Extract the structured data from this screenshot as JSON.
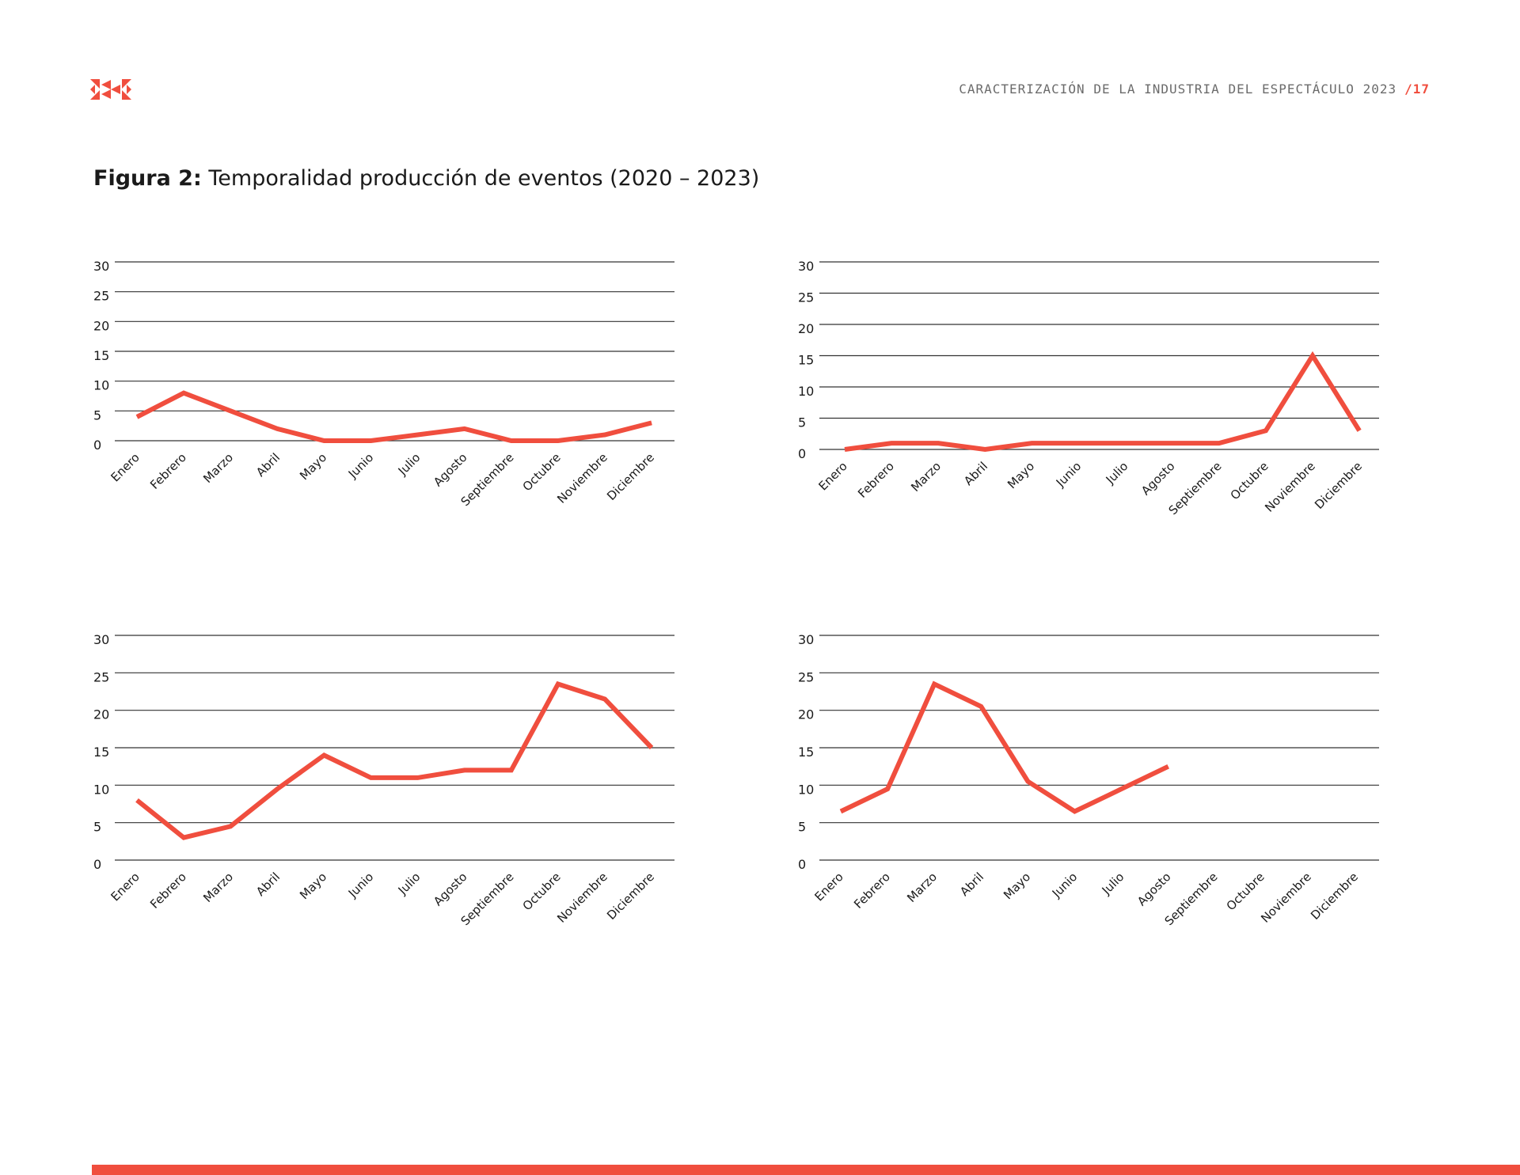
{
  "header": {
    "logo_icon": "brand-logo-icon",
    "text": "CARACTERIZACIÓN DE LA INDUSTRIA DEL ESPECTÁCULO 2023",
    "separator": "/",
    "page_number": "17"
  },
  "figure": {
    "label": "Figura 2:",
    "title": "Temporalidad producción de eventos (2020 – 2023)"
  },
  "colors": {
    "accent": "#f04e3e",
    "grid": "#333333",
    "text": "#1a1a1a"
  },
  "chart_data": [
    {
      "type": "line",
      "categories": [
        "Enero",
        "Febrero",
        "Marzo",
        "Abril",
        "Mayo",
        "Junio",
        "Julio",
        "Agosto",
        "Septiembre",
        "Octubre",
        "Noviembre",
        "Diciembre"
      ],
      "values": [
        4,
        8,
        5,
        2,
        0,
        0,
        1,
        2,
        0,
        0,
        1,
        3
      ],
      "ylim": [
        0,
        30
      ],
      "yticks": [
        0,
        5,
        10,
        15,
        20,
        25,
        30
      ],
      "grid": true,
      "legend": "none"
    },
    {
      "type": "line",
      "categories": [
        "Enero",
        "Febrero",
        "Marzo",
        "Abril",
        "Mayo",
        "Junio",
        "Julio",
        "Agosto",
        "Septiembre",
        "Octubre",
        "Noviembre",
        "Diciembre"
      ],
      "values": [
        0,
        1,
        1,
        0,
        1,
        1,
        1,
        1,
        1,
        3,
        15,
        3
      ],
      "ylim": [
        0,
        30
      ],
      "yticks": [
        0,
        5,
        10,
        15,
        20,
        25,
        30
      ],
      "grid": true,
      "legend": "none"
    },
    {
      "type": "line",
      "categories": [
        "Enero",
        "Febrero",
        "Marzo",
        "Abril",
        "Mayo",
        "Junio",
        "Julio",
        "Agosto",
        "Septiembre",
        "Octubre",
        "Noviembre",
        "Diciembre"
      ],
      "values": [
        8,
        3,
        4.5,
        9.5,
        14,
        11,
        11,
        12,
        12,
        23.5,
        21.5,
        15
      ],
      "ylim": [
        0,
        30
      ],
      "yticks": [
        0,
        5,
        10,
        15,
        20,
        25,
        30
      ],
      "grid": true,
      "legend": "none"
    },
    {
      "type": "line",
      "categories": [
        "Enero",
        "Febrero",
        "Marzo",
        "Abril",
        "Mayo",
        "Junio",
        "Julio",
        "Agosto",
        "Septiembre",
        "Octubre",
        "Noviembre",
        "Diciembre"
      ],
      "values": [
        6.5,
        9.5,
        23.5,
        20.5,
        10.5,
        6.5,
        9.5,
        12.5,
        null,
        null,
        null,
        null
      ],
      "ylim": [
        0,
        30
      ],
      "yticks": [
        0,
        5,
        10,
        15,
        20,
        25,
        30
      ],
      "grid": true,
      "legend": "none"
    }
  ]
}
